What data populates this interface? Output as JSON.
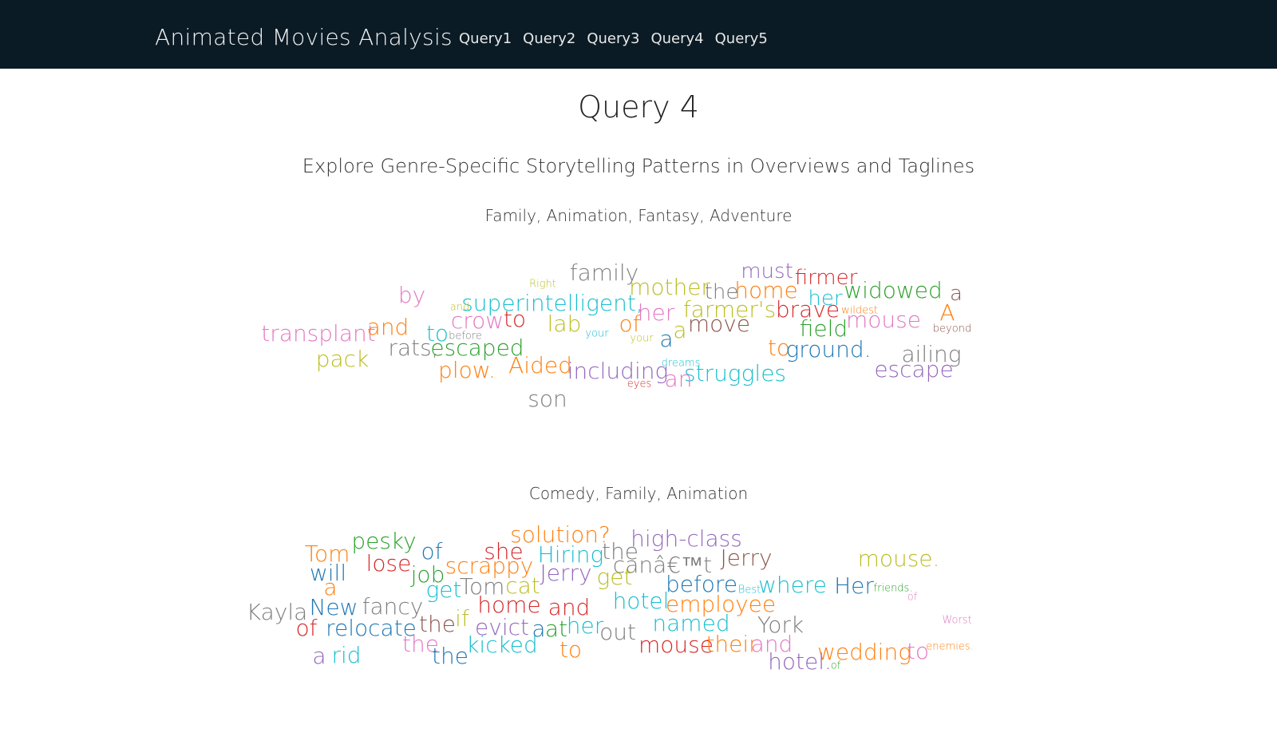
{
  "navbar": {
    "brand": "Animated Movies Analysis",
    "links": [
      "Query1",
      "Query2",
      "Query3",
      "Query4",
      "Query5"
    ]
  },
  "page": {
    "title": "Query 4",
    "subtitle": "Explore Genre-Specific Storytelling Patterns in Overviews and Taglines"
  },
  "clouds": [
    {
      "genre": "Family, Animation, Fantasy, Adventure",
      "words": [
        {
          "t": "family",
          "c": "#7f7f7f"
        },
        {
          "t": "must",
          "c": "#9467bd"
        },
        {
          "t": "firmer",
          "c": "#d62728"
        },
        {
          "t": "mother",
          "c": "#bcbd22"
        },
        {
          "t": "the",
          "c": "#7f7f7f"
        },
        {
          "t": "home",
          "c": "#ff7f0e"
        },
        {
          "t": "her",
          "c": "#17becf"
        },
        {
          "t": "widowed",
          "c": "#2ca02c"
        },
        {
          "t": "a",
          "c": "#8c564b"
        },
        {
          "t": "by",
          "c": "#e377c2"
        },
        {
          "t": "Right",
          "c": "#bcbd22"
        },
        {
          "t": "superintelligent,",
          "c": "#17becf"
        },
        {
          "t": "and",
          "c": "#bcbd22"
        },
        {
          "t": "her",
          "c": "#e377c2"
        },
        {
          "t": "farmer's",
          "c": "#bcbd22"
        },
        {
          "t": "brave",
          "c": "#d62728"
        },
        {
          "t": "wildest",
          "c": "#ff7f0e"
        },
        {
          "t": "A",
          "c": "#ff7f0e"
        },
        {
          "t": "crow",
          "c": "#e377c2"
        },
        {
          "t": "to",
          "c": "#d62728"
        },
        {
          "t": "lab",
          "c": "#bcbd22"
        },
        {
          "t": "of",
          "c": "#ff7f0e"
        },
        {
          "t": "move",
          "c": "#8c564b"
        },
        {
          "t": "field",
          "c": "#2ca02c"
        },
        {
          "t": "mouse",
          "c": "#e377c2"
        },
        {
          "t": "beyond",
          "c": "#8c564b"
        },
        {
          "t": "transplant",
          "c": "#e377c2"
        },
        {
          "t": "and",
          "c": "#ff7f0e"
        },
        {
          "t": "to",
          "c": "#17becf"
        },
        {
          "t": "before",
          "c": "#7f7f7f"
        },
        {
          "t": "your",
          "c": "#17becf"
        },
        {
          "t": "your",
          "c": "#bcbd22"
        },
        {
          "t": "a",
          "c": "#1f77b4"
        },
        {
          "t": "a",
          "c": "#bcbd22"
        },
        {
          "t": "rats,",
          "c": "#7f7f7f"
        },
        {
          "t": "escaped",
          "c": "#2ca02c"
        },
        {
          "t": "to",
          "c": "#ff7f0e"
        },
        {
          "t": "ground.",
          "c": "#1f77b4"
        },
        {
          "t": "ailing",
          "c": "#7f7f7f"
        },
        {
          "t": "pack",
          "c": "#bcbd22"
        },
        {
          "t": "plow.",
          "c": "#ff7f0e"
        },
        {
          "t": "Aided",
          "c": "#ff7f0e"
        },
        {
          "t": "including",
          "c": "#9467bd"
        },
        {
          "t": "dreams",
          "c": "#17becf"
        },
        {
          "t": "struggles",
          "c": "#17becf"
        },
        {
          "t": "escape",
          "c": "#9467bd"
        },
        {
          "t": "an",
          "c": "#e377c2"
        },
        {
          "t": "eyes",
          "c": "#d62728"
        },
        {
          "t": "son",
          "c": "#7f7f7f"
        }
      ]
    },
    {
      "genre": "Comedy, Family, Animation",
      "words": [
        {
          "t": "solution?",
          "c": "#ff7f0e"
        },
        {
          "t": "high-class",
          "c": "#9467bd"
        },
        {
          "t": "Tom",
          "c": "#ff7f0e"
        },
        {
          "t": "pesky",
          "c": "#2ca02c"
        },
        {
          "t": "of",
          "c": "#1f77b4"
        },
        {
          "t": "she",
          "c": "#d62728"
        },
        {
          "t": "Hiring",
          "c": "#17becf"
        },
        {
          "t": "the",
          "c": "#7f7f7f"
        },
        {
          "t": "mouse.",
          "c": "#bcbd22"
        },
        {
          "t": "lose",
          "c": "#d62728"
        },
        {
          "t": "scrappy",
          "c": "#ff7f0e"
        },
        {
          "t": "canâ€™t",
          "c": "#7f7f7f"
        },
        {
          "t": "Jerry",
          "c": "#8c564b"
        },
        {
          "t": "will",
          "c": "#1f77b4"
        },
        {
          "t": "job",
          "c": "#2ca02c"
        },
        {
          "t": "Jerry",
          "c": "#9467bd"
        },
        {
          "t": "get",
          "c": "#bcbd22"
        },
        {
          "t": "a",
          "c": "#ff7f0e"
        },
        {
          "t": "Tom",
          "c": "#7f7f7f"
        },
        {
          "t": "cat",
          "c": "#bcbd22"
        },
        {
          "t": "get",
          "c": "#17becf"
        },
        {
          "t": "before",
          "c": "#1f77b4"
        },
        {
          "t": "Best",
          "c": "#17becf"
        },
        {
          "t": "where",
          "c": "#17becf"
        },
        {
          "t": "Her",
          "c": "#1f77b4"
        },
        {
          "t": "friends.",
          "c": "#2ca02c"
        },
        {
          "t": "of",
          "c": "#e377c2"
        },
        {
          "t": "Kayla",
          "c": "#7f7f7f"
        },
        {
          "t": "New",
          "c": "#1f77b4"
        },
        {
          "t": "fancy",
          "c": "#7f7f7f"
        },
        {
          "t": "home",
          "c": "#d62728"
        },
        {
          "t": "and",
          "c": "#d62728"
        },
        {
          "t": "hotel",
          "c": "#17becf"
        },
        {
          "t": "employee",
          "c": "#ff7f0e"
        },
        {
          "t": "of",
          "c": "#d62728"
        },
        {
          "t": "relocate",
          "c": "#1f77b4"
        },
        {
          "t": "the",
          "c": "#8c564b"
        },
        {
          "t": "if",
          "c": "#bcbd22"
        },
        {
          "t": "evict",
          "c": "#9467bd"
        },
        {
          "t": "a",
          "c": "#1f77b4"
        },
        {
          "t": "at",
          "c": "#2ca02c"
        },
        {
          "t": "her",
          "c": "#17becf"
        },
        {
          "t": "named",
          "c": "#17becf"
        },
        {
          "t": "York",
          "c": "#7f7f7f"
        },
        {
          "t": "Worst",
          "c": "#e377c2"
        },
        {
          "t": "out",
          "c": "#7f7f7f"
        },
        {
          "t": "the",
          "c": "#e377c2"
        },
        {
          "t": "kicked",
          "c": "#17becf"
        },
        {
          "t": "mouse",
          "c": "#d62728"
        },
        {
          "t": "their",
          "c": "#ff7f0e"
        },
        {
          "t": "and",
          "c": "#e377c2"
        },
        {
          "t": "wedding",
          "c": "#ff7f0e"
        },
        {
          "t": "to",
          "c": "#e377c2"
        },
        {
          "t": "enemies.",
          "c": "#ff7f0e"
        },
        {
          "t": "a",
          "c": "#9467bd"
        },
        {
          "t": "rid",
          "c": "#17becf"
        },
        {
          "t": "the",
          "c": "#1f77b4"
        },
        {
          "t": "to",
          "c": "#ff7f0e"
        },
        {
          "t": "hotel.",
          "c": "#9467bd"
        },
        {
          "t": "of",
          "c": "#2ca02c"
        }
      ]
    }
  ]
}
